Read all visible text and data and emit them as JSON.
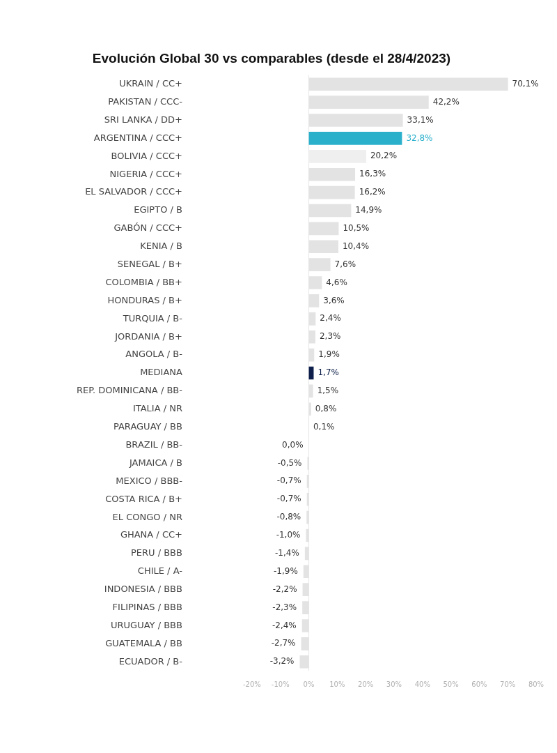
{
  "chart_data": {
    "type": "bar",
    "orientation": "horizontal",
    "title": "Evolución Global 30 vs comparables (desde el 28/4/2023)",
    "categories": [
      "UKRAIN / CC+",
      "PAKISTAN / CCC-",
      "SRI LANKA / DD+",
      "ARGENTINA / CCC+",
      "BOLIVIA / CCC+",
      "NIGERIA / CCC+",
      "EL SALVADOR / CCC+",
      "EGIPTO / B",
      "GABÓN / CCC+",
      "KENIA / B",
      "SENEGAL / B+",
      "COLOMBIA / BB+",
      "HONDURAS / B+",
      "TURQUIA / B-",
      "JORDANIA / B+",
      "ANGOLA / B-",
      "MEDIANA",
      "REP. DOMINICANA / BB-",
      "ITALIA / NR",
      "PARAGUAY / BB",
      "BRAZIL / BB-",
      "JAMAICA / B",
      "MEXICO / BBB-",
      "COSTA RICA / B+",
      "EL CONGO / NR",
      "GHANA / CC+",
      "PERU / BBB",
      "CHILE / A-",
      "INDONESIA / BBB",
      "FILIPINAS / BBB",
      "URUGUAY / BBB",
      "GUATEMALA / BB",
      "ECUADOR / B-"
    ],
    "values": [
      70.1,
      42.2,
      33.1,
      32.8,
      20.2,
      16.3,
      16.2,
      14.9,
      10.5,
      10.4,
      7.6,
      4.6,
      3.6,
      2.4,
      2.3,
      1.9,
      1.7,
      1.5,
      0.8,
      0.1,
      0.0,
      -0.5,
      -0.7,
      -0.7,
      -0.8,
      -1.0,
      -1.4,
      -1.9,
      -2.2,
      -2.3,
      -2.4,
      -2.7,
      -3.2
    ],
    "colors": [
      "#e3e3e3",
      "#e3e3e3",
      "#e3e3e3",
      "#2bb0cc",
      "#efefef",
      "#e3e3e3",
      "#e3e3e3",
      "#e3e3e3",
      "#e3e3e3",
      "#e3e3e3",
      "#e3e3e3",
      "#e3e3e3",
      "#e3e3e3",
      "#e3e3e3",
      "#e3e3e3",
      "#e3e3e3",
      "#0d1f4a",
      "#e3e3e3",
      "#e3e3e3",
      "#e3e3e3",
      "#e3e3e3",
      "#e3e3e3",
      "#e3e3e3",
      "#e3e3e3",
      "#e3e3e3",
      "#e3e3e3",
      "#e3e3e3",
      "#e3e3e3",
      "#e3e3e3",
      "#e3e3e3",
      "#e3e3e3",
      "#e3e3e3",
      "#e3e3e3"
    ],
    "xlim": [
      -20,
      80
    ],
    "xticks": [
      {
        "value": -20,
        "label": "-20%"
      },
      {
        "value": -10,
        "label": "-10%"
      },
      {
        "value": 0,
        "label": "0%"
      },
      {
        "value": 10,
        "label": "10%"
      },
      {
        "value": 20,
        "label": "20%"
      },
      {
        "value": 30,
        "label": "30%"
      },
      {
        "value": 40,
        "label": "40%"
      },
      {
        "value": 50,
        "label": "50%"
      },
      {
        "value": 60,
        "label": "60%"
      },
      {
        "value": 70,
        "label": "70%"
      },
      {
        "value": 80,
        "label": "80%"
      }
    ],
    "value_labels": [
      "70,1%",
      "42,2%",
      "33,1%",
      "32,8%",
      "20,2%",
      "16,3%",
      "16,2%",
      "14,9%",
      "10,5%",
      "10,4%",
      "7,6%",
      "4,6%",
      "3,6%",
      "2,4%",
      "2,3%",
      "1,9%",
      "1,7%",
      "1,5%",
      "0,8%",
      "0,1%",
      "0,0%",
      "-0,5%",
      "-0,7%",
      "-0,7%",
      "-0,8%",
      "-1,0%",
      "-1,4%",
      "-1,9%",
      "-2,2%",
      "-2,3%",
      "-2,4%",
      "-2,7%",
      "-3,2%"
    ],
    "ref_lines": [
      {
        "axis": "x",
        "value": 0,
        "color": "#e6e6e6"
      }
    ],
    "grid": false,
    "legend": false
  }
}
